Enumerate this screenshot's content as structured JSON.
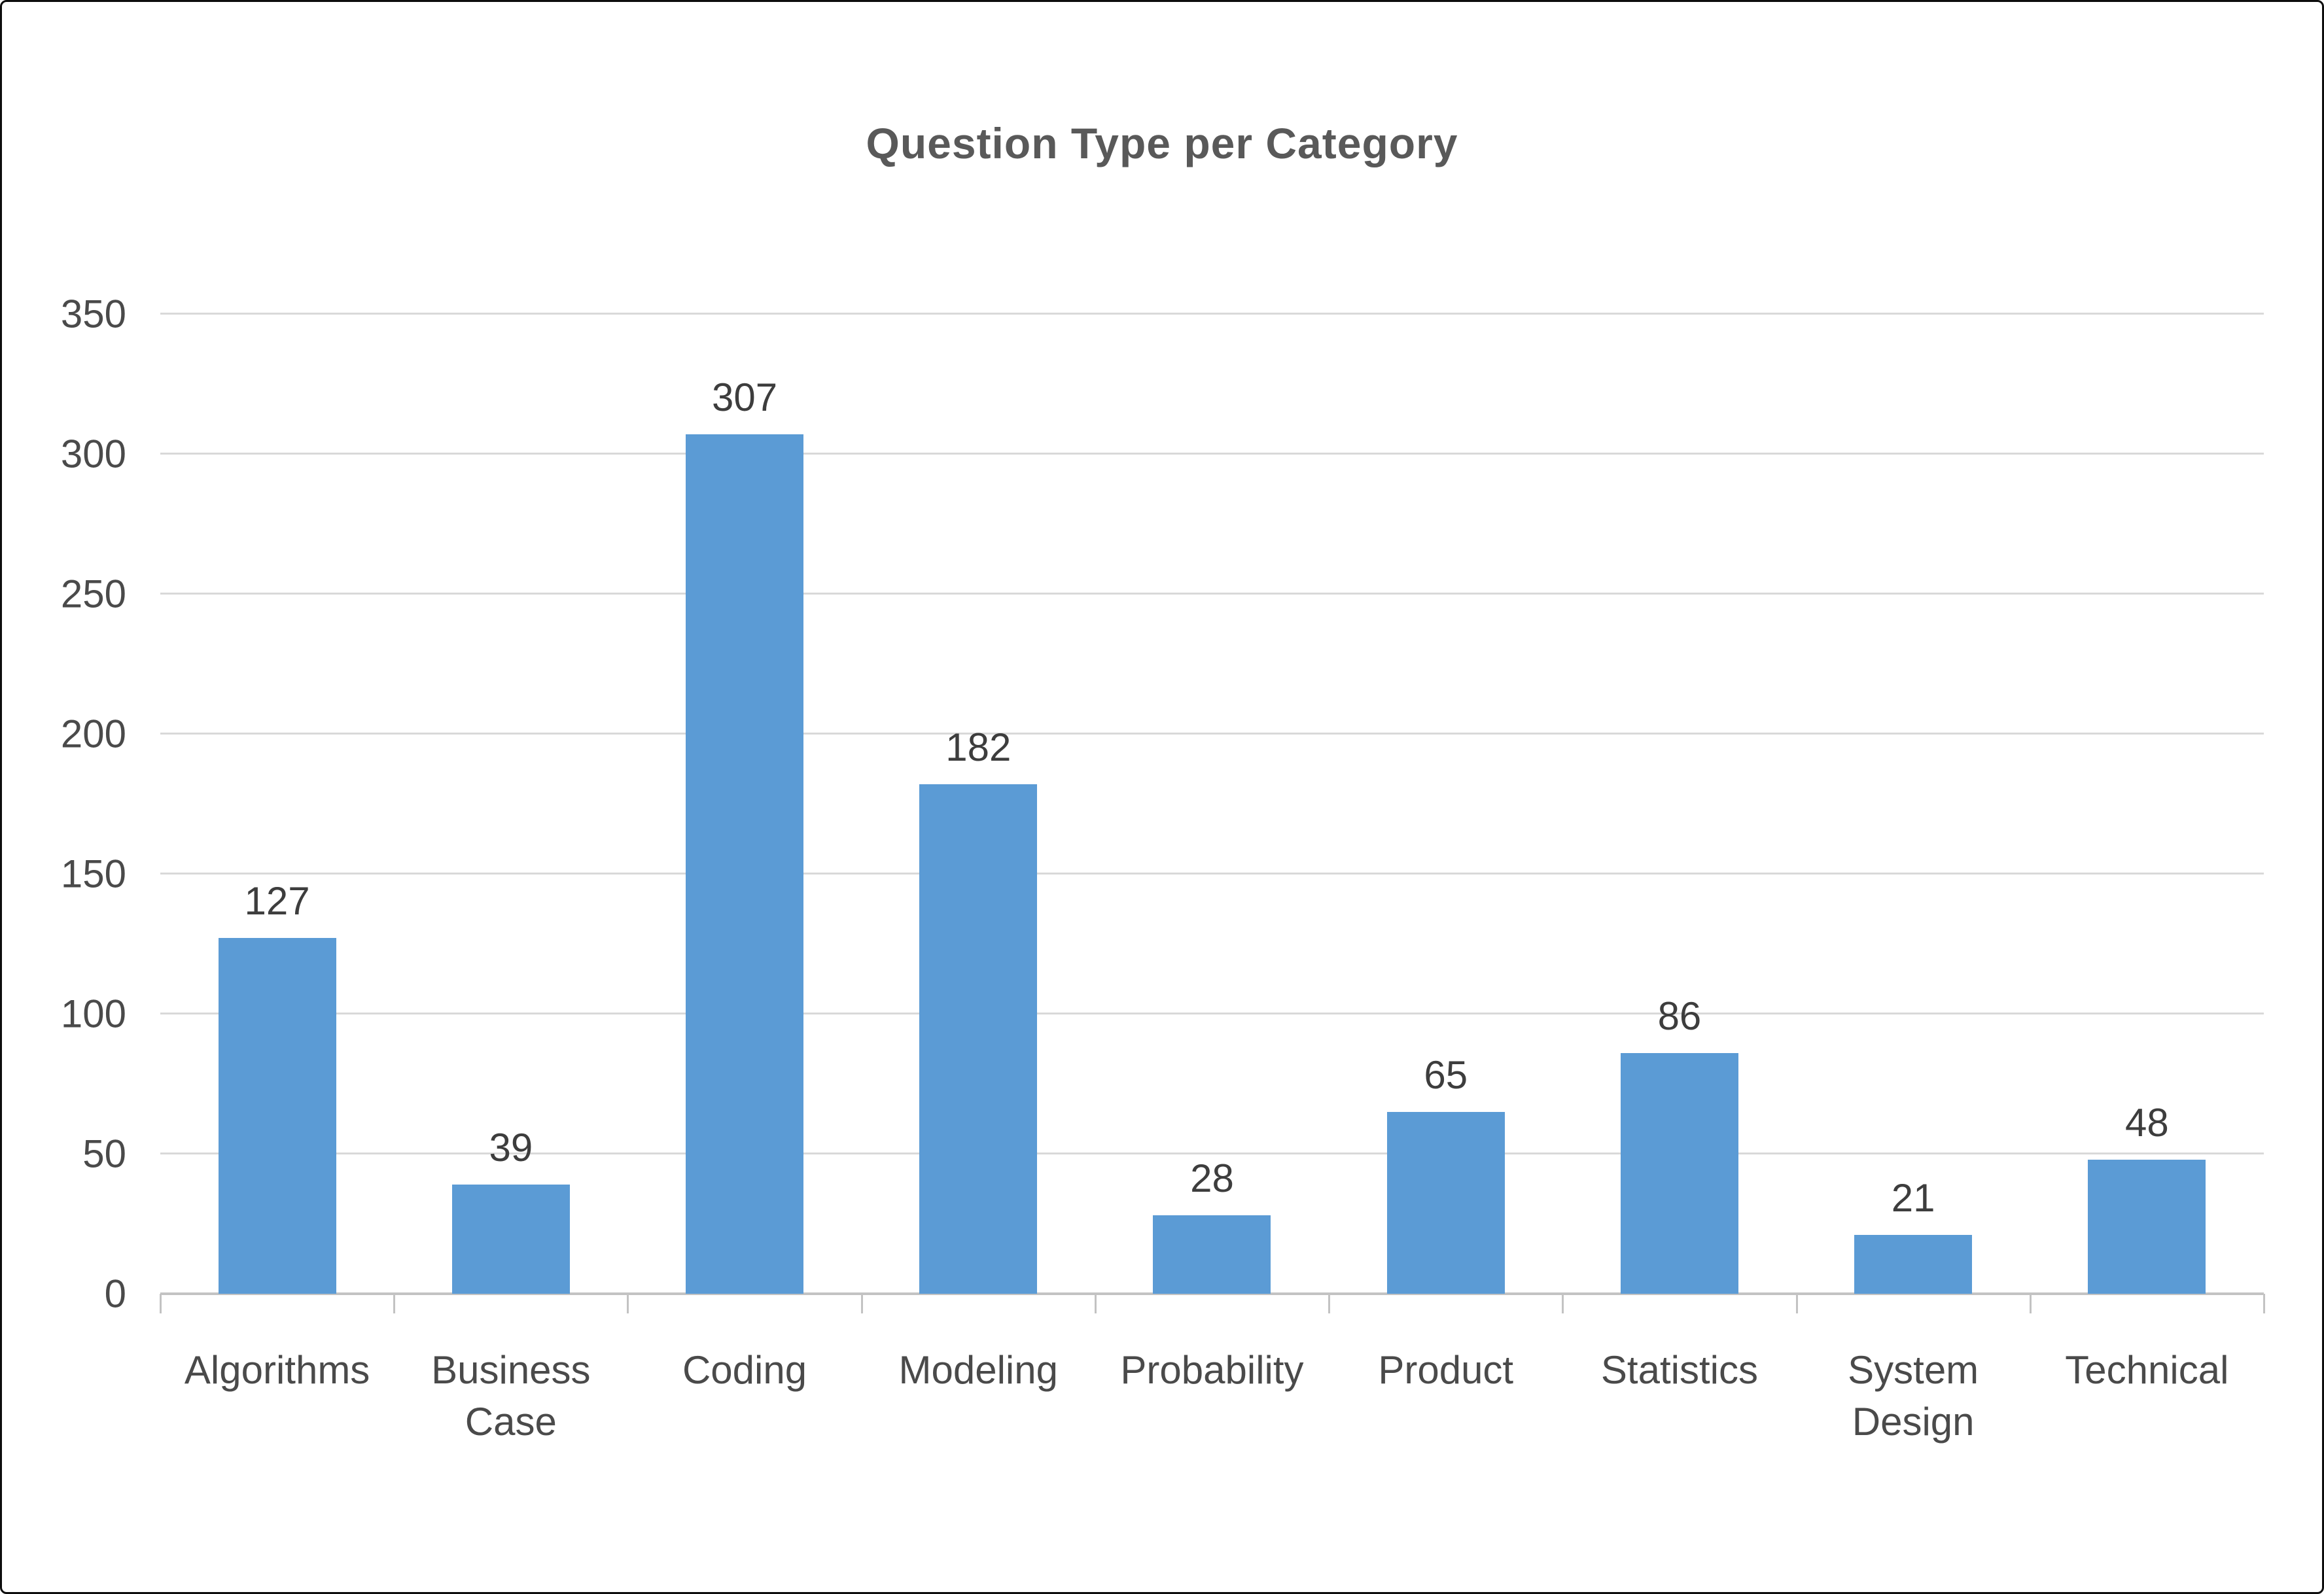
{
  "chart_data": {
    "type": "bar",
    "title": "Question Type per Category",
    "categories": [
      "Algorithms",
      "Business Case",
      "Coding",
      "Modeling",
      "Probability",
      "Product",
      "Statistics",
      "System Design",
      "Technical"
    ],
    "values": [
      127,
      39,
      307,
      182,
      28,
      65,
      86,
      21,
      48
    ],
    "data_labels": [
      "127",
      "39",
      "307",
      "182",
      "28",
      "65",
      "86",
      "21",
      "48"
    ],
    "xlabel": "",
    "ylabel": "",
    "ylim": [
      0,
      350
    ],
    "ytick_step": 50,
    "ytick_labels": [
      "0",
      "50",
      "100",
      "150",
      "200",
      "250",
      "300",
      "350"
    ],
    "grid": true,
    "legend": false,
    "bar_color": "#5b9bd5",
    "gridline_color": "#d9d9d9",
    "axis_line_color": "#c3c3c3",
    "title_color": "#595959",
    "label_color": "#3d3d3d"
  }
}
